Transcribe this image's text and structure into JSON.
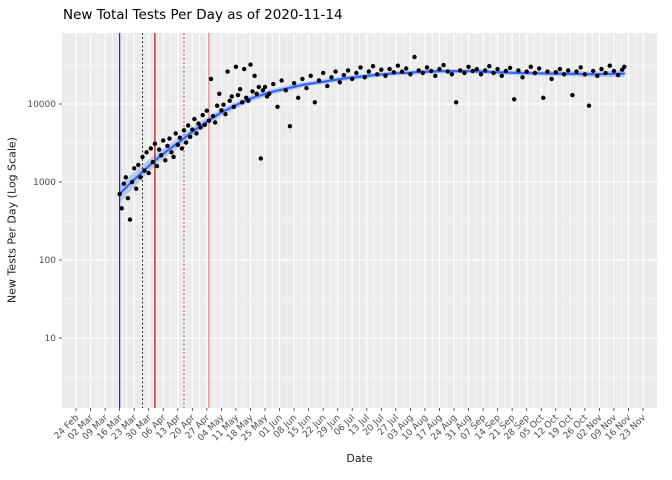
{
  "chart_data": {
    "type": "scatter",
    "title": "New Total Tests Per Day as of 2020-11-14",
    "xlabel": "Date",
    "ylabel": "New Tests Per Day (Log Scale)",
    "y_scale": "log10",
    "y_ticks": [
      10,
      100,
      1000,
      10000
    ],
    "x_tick_interval_days": 7,
    "x_tick_labels": [
      "24 Feb",
      "02 Mar",
      "09 Mar",
      "16 Mar",
      "23 Mar",
      "30 Mar",
      "06 Apr",
      "13 Apr",
      "20 Apr",
      "27 Apr",
      "04 May",
      "11 May",
      "18 May",
      "25 May",
      "01 Jun",
      "08 Jun",
      "15 Jun",
      "22 Jun",
      "29 Jun",
      "06 Jul",
      "13 Jul",
      "20 Jul",
      "27 Jul",
      "03 Aug",
      "10 Aug",
      "17 Aug",
      "24 Aug",
      "31 Aug",
      "07 Sep",
      "14 Sep",
      "21 Sep",
      "28 Sep",
      "05 Oct",
      "12 Oct",
      "19 Oct",
      "26 Oct",
      "02 Nov",
      "09 Nov",
      "16 Nov",
      "23 Nov"
    ],
    "legend": "none",
    "grid": "on",
    "panel_bg": "#EBEBEB",
    "grid_color": "#FFFFFF",
    "point_color": "#000000",
    "trend_color": "#3366FF",
    "ribbon_color": "#AEC3EC",
    "tick_label_color": "#4D4D4D",
    "points": [
      [
        21,
        700
      ],
      [
        22,
        460
      ],
      [
        23,
        950
      ],
      [
        24,
        1150
      ],
      [
        25,
        620
      ],
      [
        26,
        330
      ],
      [
        27,
        1000
      ],
      [
        28,
        1500
      ],
      [
        29,
        820
      ],
      [
        30,
        1650
      ],
      [
        31,
        1150
      ],
      [
        32,
        2100
      ],
      [
        33,
        1400
      ],
      [
        34,
        2400
      ],
      [
        35,
        1300
      ],
      [
        36,
        2700
      ],
      [
        37,
        1800
      ],
      [
        38,
        3100
      ],
      [
        39,
        1600
      ],
      [
        40,
        2600
      ],
      [
        41,
        2200
      ],
      [
        42,
        3400
      ],
      [
        43,
        1900
      ],
      [
        44,
        2900
      ],
      [
        45,
        3600
      ],
      [
        46,
        2400
      ],
      [
        47,
        2100
      ],
      [
        48,
        4200
      ],
      [
        49,
        3000
      ],
      [
        50,
        3700
      ],
      [
        51,
        2700
      ],
      [
        52,
        4600
      ],
      [
        53,
        3200
      ],
      [
        54,
        5300
      ],
      [
        55,
        3800
      ],
      [
        56,
        4700
      ],
      [
        57,
        6400
      ],
      [
        58,
        4200
      ],
      [
        59,
        5600
      ],
      [
        60,
        5000
      ],
      [
        61,
        7200
      ],
      [
        62,
        5400
      ],
      [
        63,
        8200
      ],
      [
        64,
        6100
      ],
      [
        65,
        21000
      ],
      [
        66,
        7000
      ],
      [
        67,
        5800
      ],
      [
        68,
        9500
      ],
      [
        69,
        13500
      ],
      [
        70,
        8300
      ],
      [
        71,
        9800
      ],
      [
        72,
        7400
      ],
      [
        73,
        26000
      ],
      [
        74,
        11000
      ],
      [
        75,
        12500
      ],
      [
        76,
        9200
      ],
      [
        77,
        30000
      ],
      [
        78,
        13000
      ],
      [
        79,
        15500
      ],
      [
        80,
        10500
      ],
      [
        81,
        28000
      ],
      [
        82,
        12000
      ],
      [
        83,
        11000
      ],
      [
        84,
        32000
      ],
      [
        85,
        14500
      ],
      [
        86,
        23000
      ],
      [
        87,
        13500
      ],
      [
        88,
        16500
      ],
      [
        89,
        2000
      ],
      [
        90,
        15000
      ],
      [
        91,
        16500
      ],
      [
        92,
        12500
      ],
      [
        93,
        13500
      ],
      [
        95,
        18000
      ],
      [
        97,
        9200
      ],
      [
        99,
        20000
      ],
      [
        101,
        15000
      ],
      [
        103,
        5200
      ],
      [
        105,
        18500
      ],
      [
        107,
        12000
      ],
      [
        109,
        21000
      ],
      [
        111,
        16000
      ],
      [
        113,
        23000
      ],
      [
        115,
        10500
      ],
      [
        117,
        20000
      ],
      [
        119,
        25000
      ],
      [
        121,
        17000
      ],
      [
        123,
        22000
      ],
      [
        125,
        26000
      ],
      [
        127,
        19000
      ],
      [
        129,
        23500
      ],
      [
        131,
        27000
      ],
      [
        133,
        21000
      ],
      [
        135,
        25000
      ],
      [
        137,
        29500
      ],
      [
        139,
        22000
      ],
      [
        141,
        26000
      ],
      [
        143,
        30500
      ],
      [
        145,
        24000
      ],
      [
        147,
        27500
      ],
      [
        149,
        23000
      ],
      [
        151,
        28000
      ],
      [
        153,
        25500
      ],
      [
        155,
        31000
      ],
      [
        157,
        26000
      ],
      [
        159,
        28500
      ],
      [
        161,
        24000
      ],
      [
        163,
        40000
      ],
      [
        165,
        27000
      ],
      [
        167,
        25000
      ],
      [
        169,
        29500
      ],
      [
        171,
        26500
      ],
      [
        173,
        23000
      ],
      [
        175,
        28000
      ],
      [
        177,
        31500
      ],
      [
        179,
        26000
      ],
      [
        181,
        24000
      ],
      [
        183,
        10500
      ],
      [
        185,
        27000
      ],
      [
        187,
        25000
      ],
      [
        189,
        30000
      ],
      [
        191,
        26500
      ],
      [
        193,
        28000
      ],
      [
        195,
        24000
      ],
      [
        197,
        27000
      ],
      [
        199,
        30500
      ],
      [
        201,
        25000
      ],
      [
        203,
        28000
      ],
      [
        205,
        23000
      ],
      [
        207,
        26500
      ],
      [
        209,
        29000
      ],
      [
        211,
        11500
      ],
      [
        213,
        27000
      ],
      [
        215,
        22000
      ],
      [
        217,
        26000
      ],
      [
        219,
        30000
      ],
      [
        221,
        25000
      ],
      [
        223,
        28500
      ],
      [
        225,
        12000
      ],
      [
        227,
        26000
      ],
      [
        229,
        21000
      ],
      [
        231,
        25500
      ],
      [
        233,
        28000
      ],
      [
        235,
        24000
      ],
      [
        237,
        27000
      ],
      [
        239,
        13000
      ],
      [
        241,
        26000
      ],
      [
        243,
        29500
      ],
      [
        245,
        24000
      ],
      [
        247,
        9500
      ],
      [
        249,
        26500
      ],
      [
        251,
        23000
      ],
      [
        253,
        28000
      ],
      [
        255,
        25000
      ],
      [
        257,
        31000
      ],
      [
        259,
        26500
      ],
      [
        261,
        23500
      ],
      [
        263,
        27500
      ],
      [
        264,
        30000
      ]
    ],
    "trend": [
      [
        21,
        700,
        0.12
      ],
      [
        25,
        900,
        0.1
      ],
      [
        30,
        1200,
        0.09
      ],
      [
        35,
        1600,
        0.08
      ],
      [
        40,
        2100,
        0.07
      ],
      [
        45,
        2650,
        0.065
      ],
      [
        50,
        3300,
        0.06
      ],
      [
        55,
        4200,
        0.055
      ],
      [
        60,
        5250,
        0.05
      ],
      [
        65,
        6450,
        0.05
      ],
      [
        70,
        7800,
        0.045
      ],
      [
        75,
        9100,
        0.045
      ],
      [
        80,
        10500,
        0.04
      ],
      [
        85,
        12000,
        0.04
      ],
      [
        90,
        13200,
        0.04
      ],
      [
        95,
        14500,
        0.035
      ],
      [
        100,
        15500,
        0.035
      ],
      [
        105,
        16600,
        0.035
      ],
      [
        110,
        17800,
        0.03
      ],
      [
        115,
        18600,
        0.03
      ],
      [
        120,
        19500,
        0.03
      ],
      [
        125,
        20400,
        0.03
      ],
      [
        130,
        21400,
        0.03
      ],
      [
        135,
        22100,
        0.03
      ],
      [
        140,
        22900,
        0.03
      ],
      [
        145,
        23700,
        0.03
      ],
      [
        150,
        24300,
        0.028
      ],
      [
        155,
        24800,
        0.028
      ],
      [
        160,
        25100,
        0.028
      ],
      [
        165,
        25700,
        0.028
      ],
      [
        170,
        26000,
        0.028
      ],
      [
        175,
        26300,
        0.028
      ],
      [
        180,
        26300,
        0.028
      ],
      [
        185,
        26300,
        0.028
      ],
      [
        190,
        26300,
        0.028
      ],
      [
        195,
        26000,
        0.028
      ],
      [
        200,
        25700,
        0.028
      ],
      [
        210,
        25100,
        0.028
      ],
      [
        220,
        24800,
        0.03
      ],
      [
        230,
        24500,
        0.03
      ],
      [
        240,
        24300,
        0.032
      ],
      [
        250,
        24000,
        0.035
      ],
      [
        264,
        24500,
        0.045
      ]
    ],
    "vlines": [
      {
        "day": 21,
        "color": "#2020CC",
        "style": "solid"
      },
      {
        "day": 32,
        "color": "#000000",
        "style": "dotted"
      },
      {
        "day": 38,
        "color": "#C00000",
        "style": "solid"
      },
      {
        "day": 52,
        "color": "#B22222",
        "style": "dotted"
      },
      {
        "day": 64,
        "color": "#F08080",
        "style": "solid"
      }
    ]
  }
}
